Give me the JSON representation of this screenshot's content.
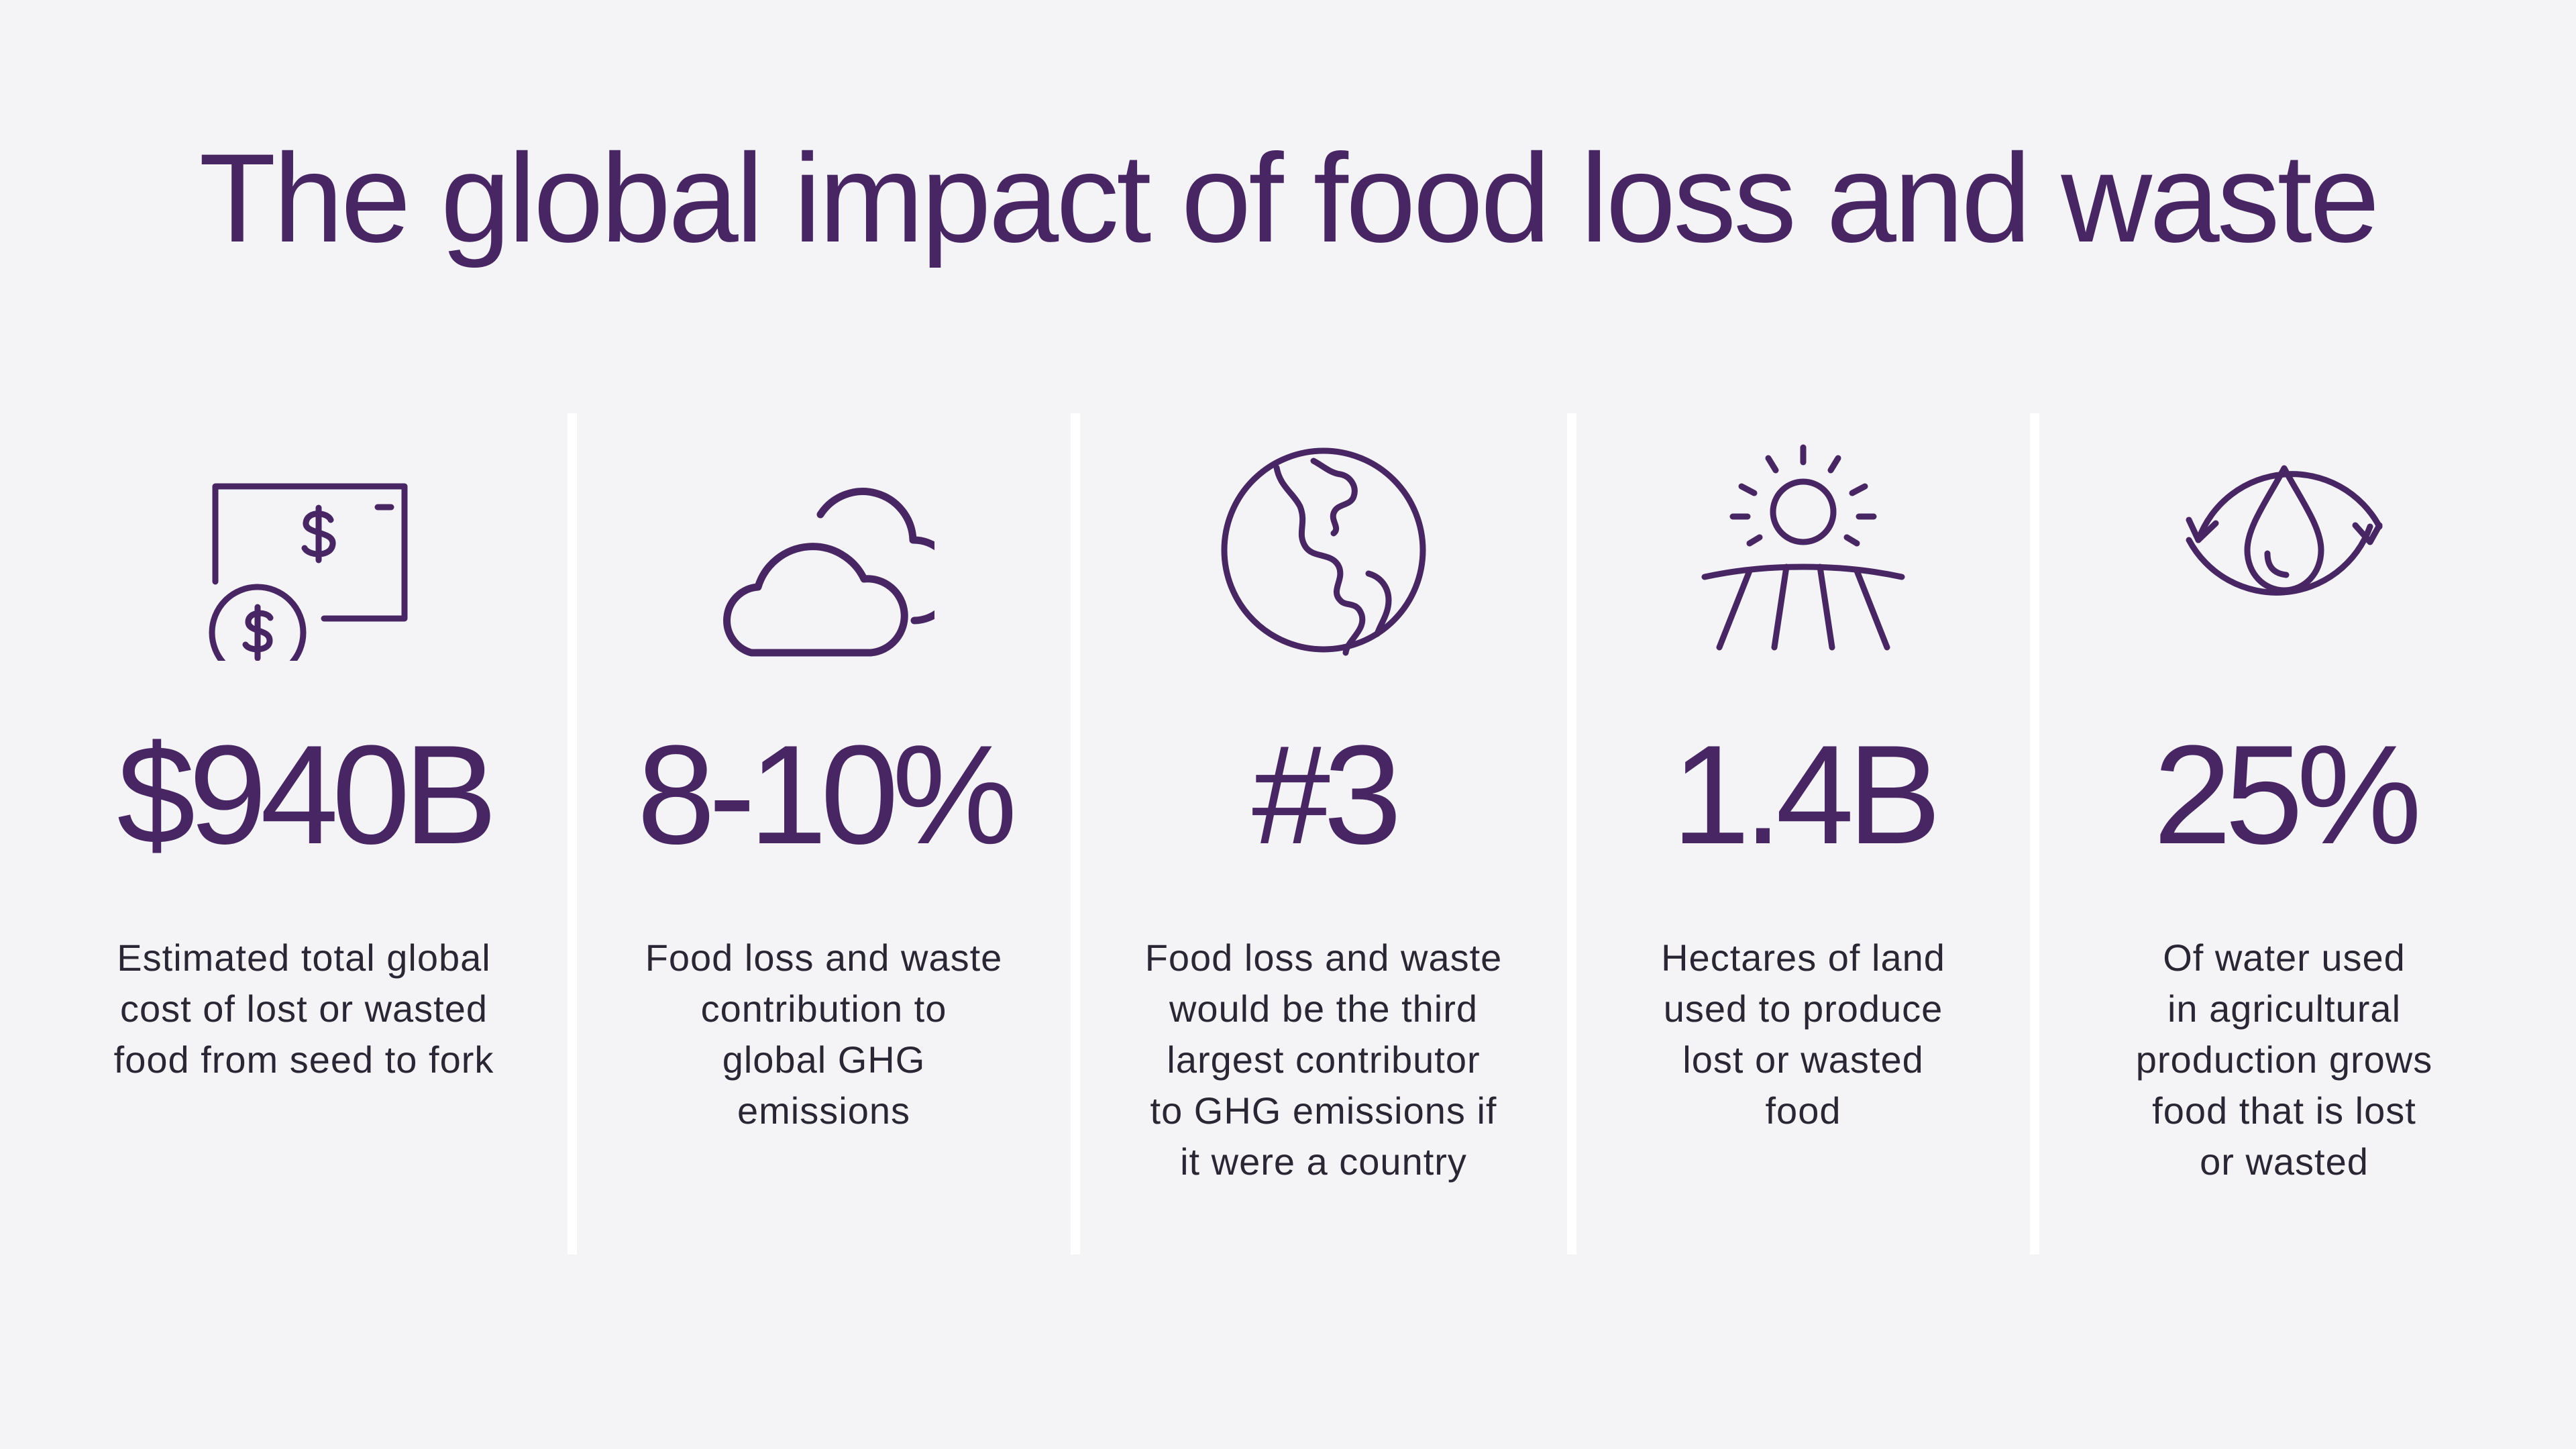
{
  "title": "The global impact of food loss and waste",
  "accent_color": "#472663",
  "text_color": "#2a2634",
  "background_color": "#f4f3f6",
  "stats": [
    {
      "icon": "money-icon",
      "value": "$940B",
      "lines": [
        "Estimated total global",
        "cost of lost or wasted",
        "food from seed to fork"
      ]
    },
    {
      "icon": "cloud-icon",
      "value": "8-10%",
      "lines": [
        "Food loss and waste",
        "contribution to",
        "global GHG",
        "emissions"
      ]
    },
    {
      "icon": "globe-icon",
      "value": "#3",
      "lines": [
        "Food loss and waste",
        "would be the third",
        "largest contributor",
        "to GHG emissions if",
        "it were a country"
      ]
    },
    {
      "icon": "sun-field-icon",
      "value": "1.4B",
      "lines": [
        "Hectares of land",
        "used to produce",
        "lost or wasted",
        "food"
      ]
    },
    {
      "icon": "water-cycle-icon",
      "value": "25%",
      "lines": [
        "Of water used",
        "in agricultural",
        "production grows",
        "food that is lost",
        "or wasted"
      ]
    }
  ]
}
